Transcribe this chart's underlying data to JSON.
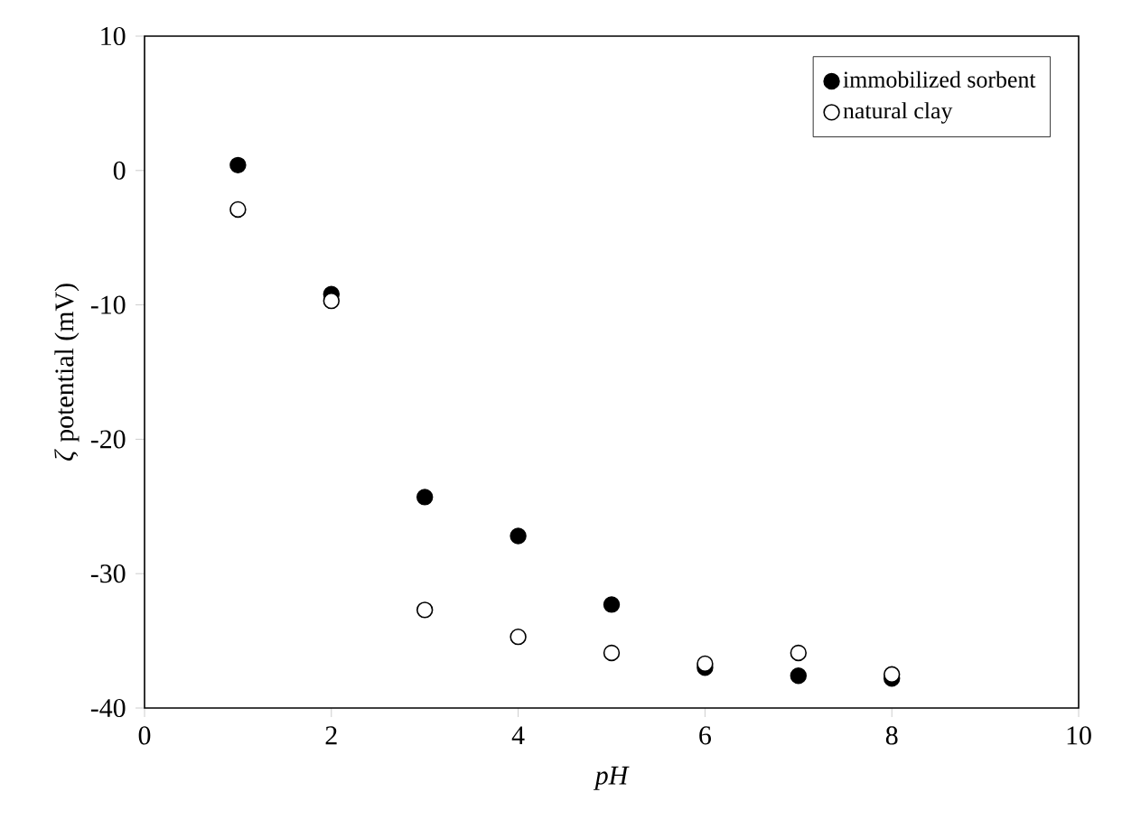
{
  "chart_data": {
    "type": "scatter",
    "xlabel": "pH",
    "ylabel": "*ζ* potential (mV)",
    "x": [
      1,
      2,
      3,
      4,
      5,
      6,
      7,
      8
    ],
    "series": [
      {
        "name": "immobilized sorbent",
        "color": "#000000",
        "values": [
          0.4,
          -9.2,
          -24.3,
          -27.2,
          -32.3,
          -37,
          -37.6,
          -37.8
        ]
      },
      {
        "name": "natural clay",
        "color": "#ffffff",
        "values": [
          -2.9,
          -9.7,
          -32.7,
          -34.7,
          -35.9,
          -36.7,
          -35.9,
          -37.5
        ]
      }
    ],
    "xlim": [
      0,
      10
    ],
    "ylim": [
      -40,
      10
    ],
    "xticks": [
      0,
      2,
      4,
      6,
      8,
      10
    ],
    "yticks": [
      -40,
      -30,
      -20,
      -10,
      0,
      10
    ],
    "marker": "circle",
    "legend": "top right",
    "grid": false
  }
}
